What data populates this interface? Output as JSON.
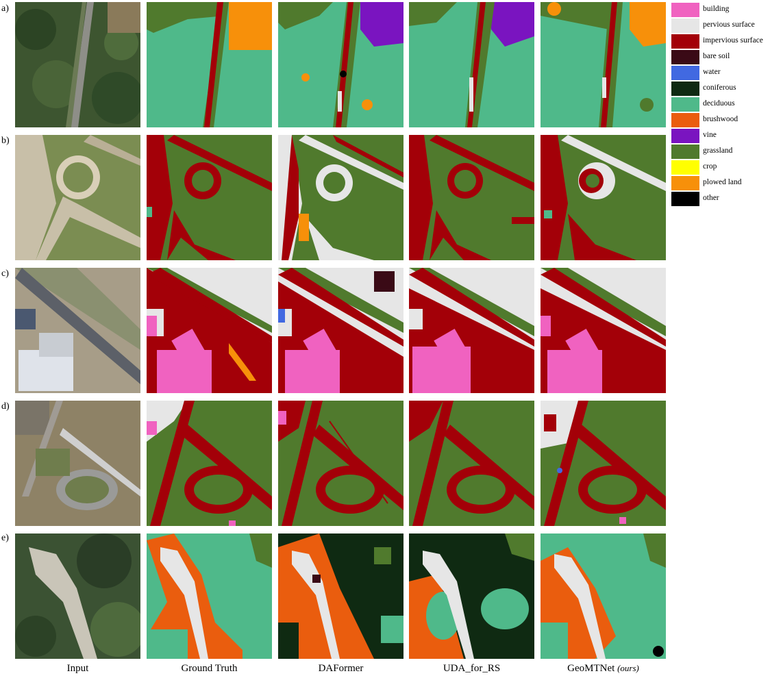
{
  "row_labels": [
    "a)",
    "b)",
    "c)",
    "d)",
    "e)"
  ],
  "columns": {
    "input": "Input",
    "ground_truth": "Ground Truth",
    "daformer": "DAFormer",
    "uda": "UDA_for_RS",
    "geomtnet": "GeoMTNet",
    "geomtnet_suffix": "(ours)"
  },
  "legend": [
    {
      "label": "building",
      "color": "#f062c0"
    },
    {
      "label": "pervious surface",
      "color": "#e6e6e6"
    },
    {
      "label": "impervious surface",
      "color": "#a30008"
    },
    {
      "label": "bare soil",
      "color": "#3a0a16"
    },
    {
      "label": "water",
      "color": "#4169e1"
    },
    {
      "label": "coniferous",
      "color": "#0f2a12"
    },
    {
      "label": "deciduous",
      "color": "#4fb98a"
    },
    {
      "label": "brushwood",
      "color": "#ea5d0e"
    },
    {
      "label": "vine",
      "color": "#7a14c0"
    },
    {
      "label": "grassland",
      "color": "#507a2d"
    },
    {
      "label": "crop",
      "color": "#ffff00"
    },
    {
      "label": "plowed land",
      "color": "#f7900a"
    },
    {
      "label": "other",
      "color": "#000000"
    }
  ]
}
